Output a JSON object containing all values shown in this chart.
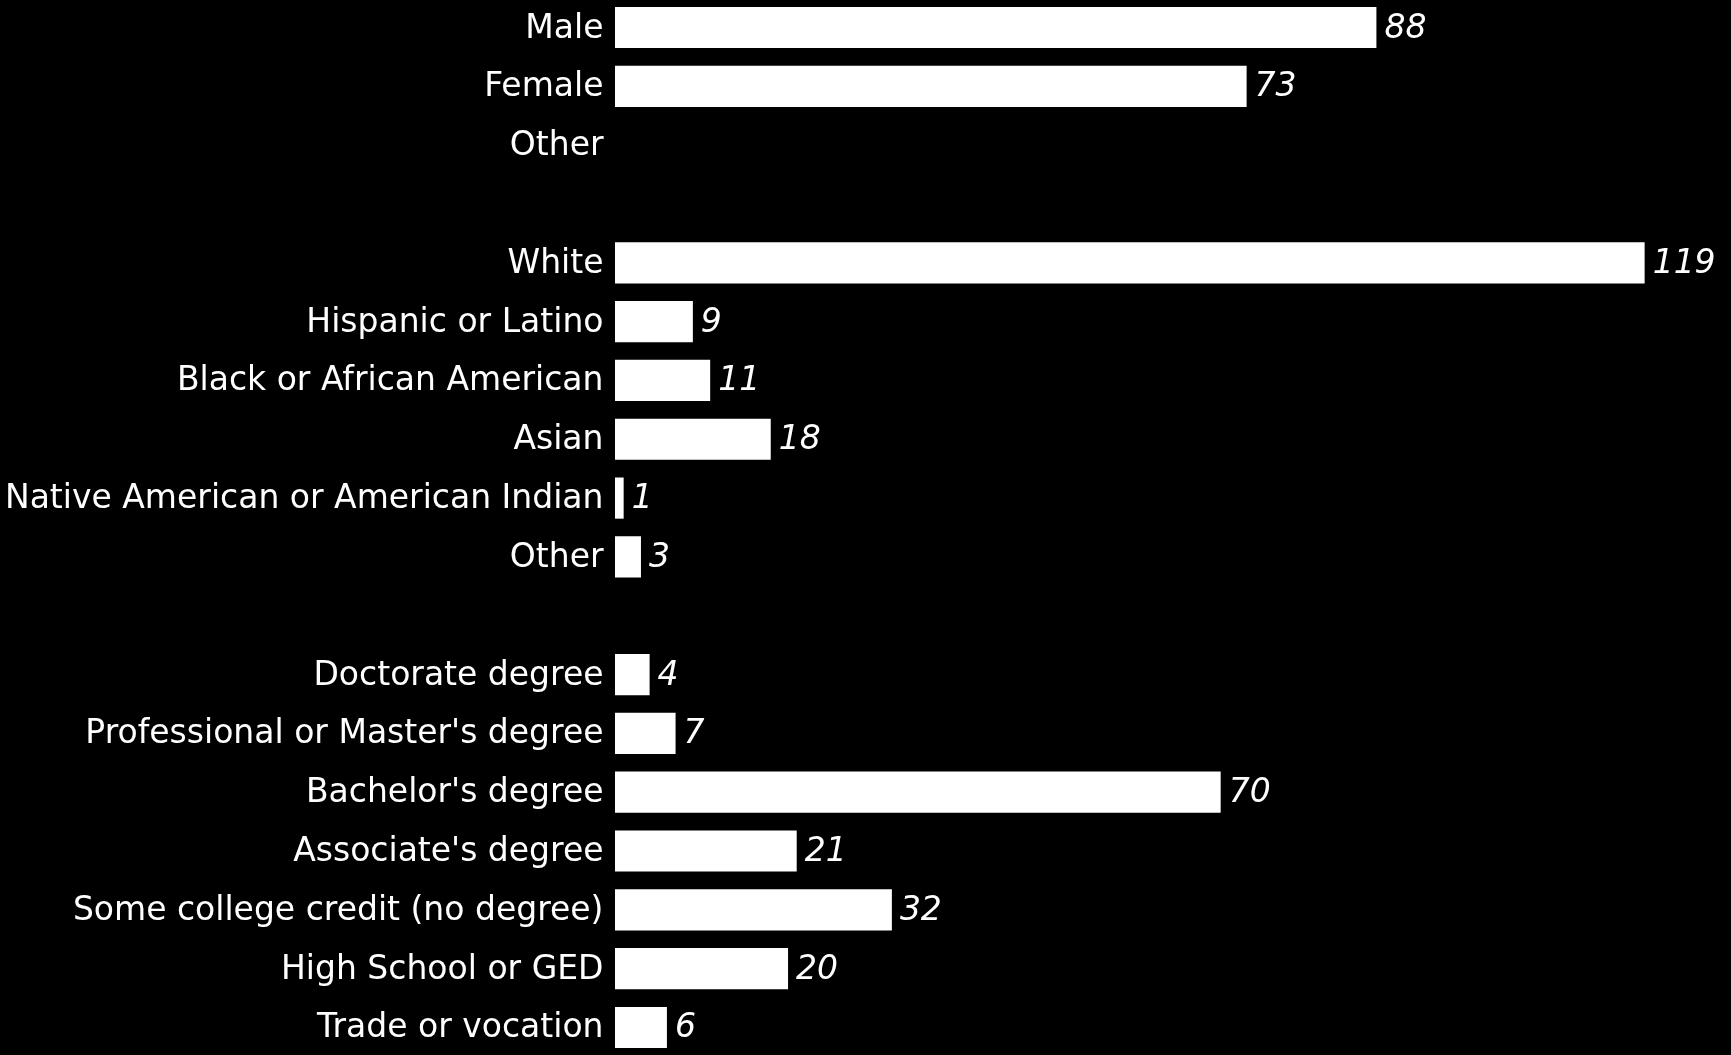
{
  "chart_data": {
    "type": "bar",
    "orientation": "horizontal",
    "data_labels": true,
    "color": "#ffffff",
    "categories": [
      "Male",
      "Female",
      "Other",
      null,
      "White",
      "Hispanic or Latino",
      "Black or African American",
      "Asian",
      "Native American or American Indian",
      "Other",
      null,
      "Doctorate degree",
      "Professional or Master's degree",
      "Bachelor's degree",
      "Associate's degree",
      "Some college credit (no degree)",
      "High School or GED",
      "Trade or vocation"
    ],
    "values": [
      88,
      73,
      null,
      null,
      119,
      9,
      11,
      18,
      1,
      3,
      null,
      4,
      7,
      70,
      21,
      32,
      20,
      6
    ]
  }
}
